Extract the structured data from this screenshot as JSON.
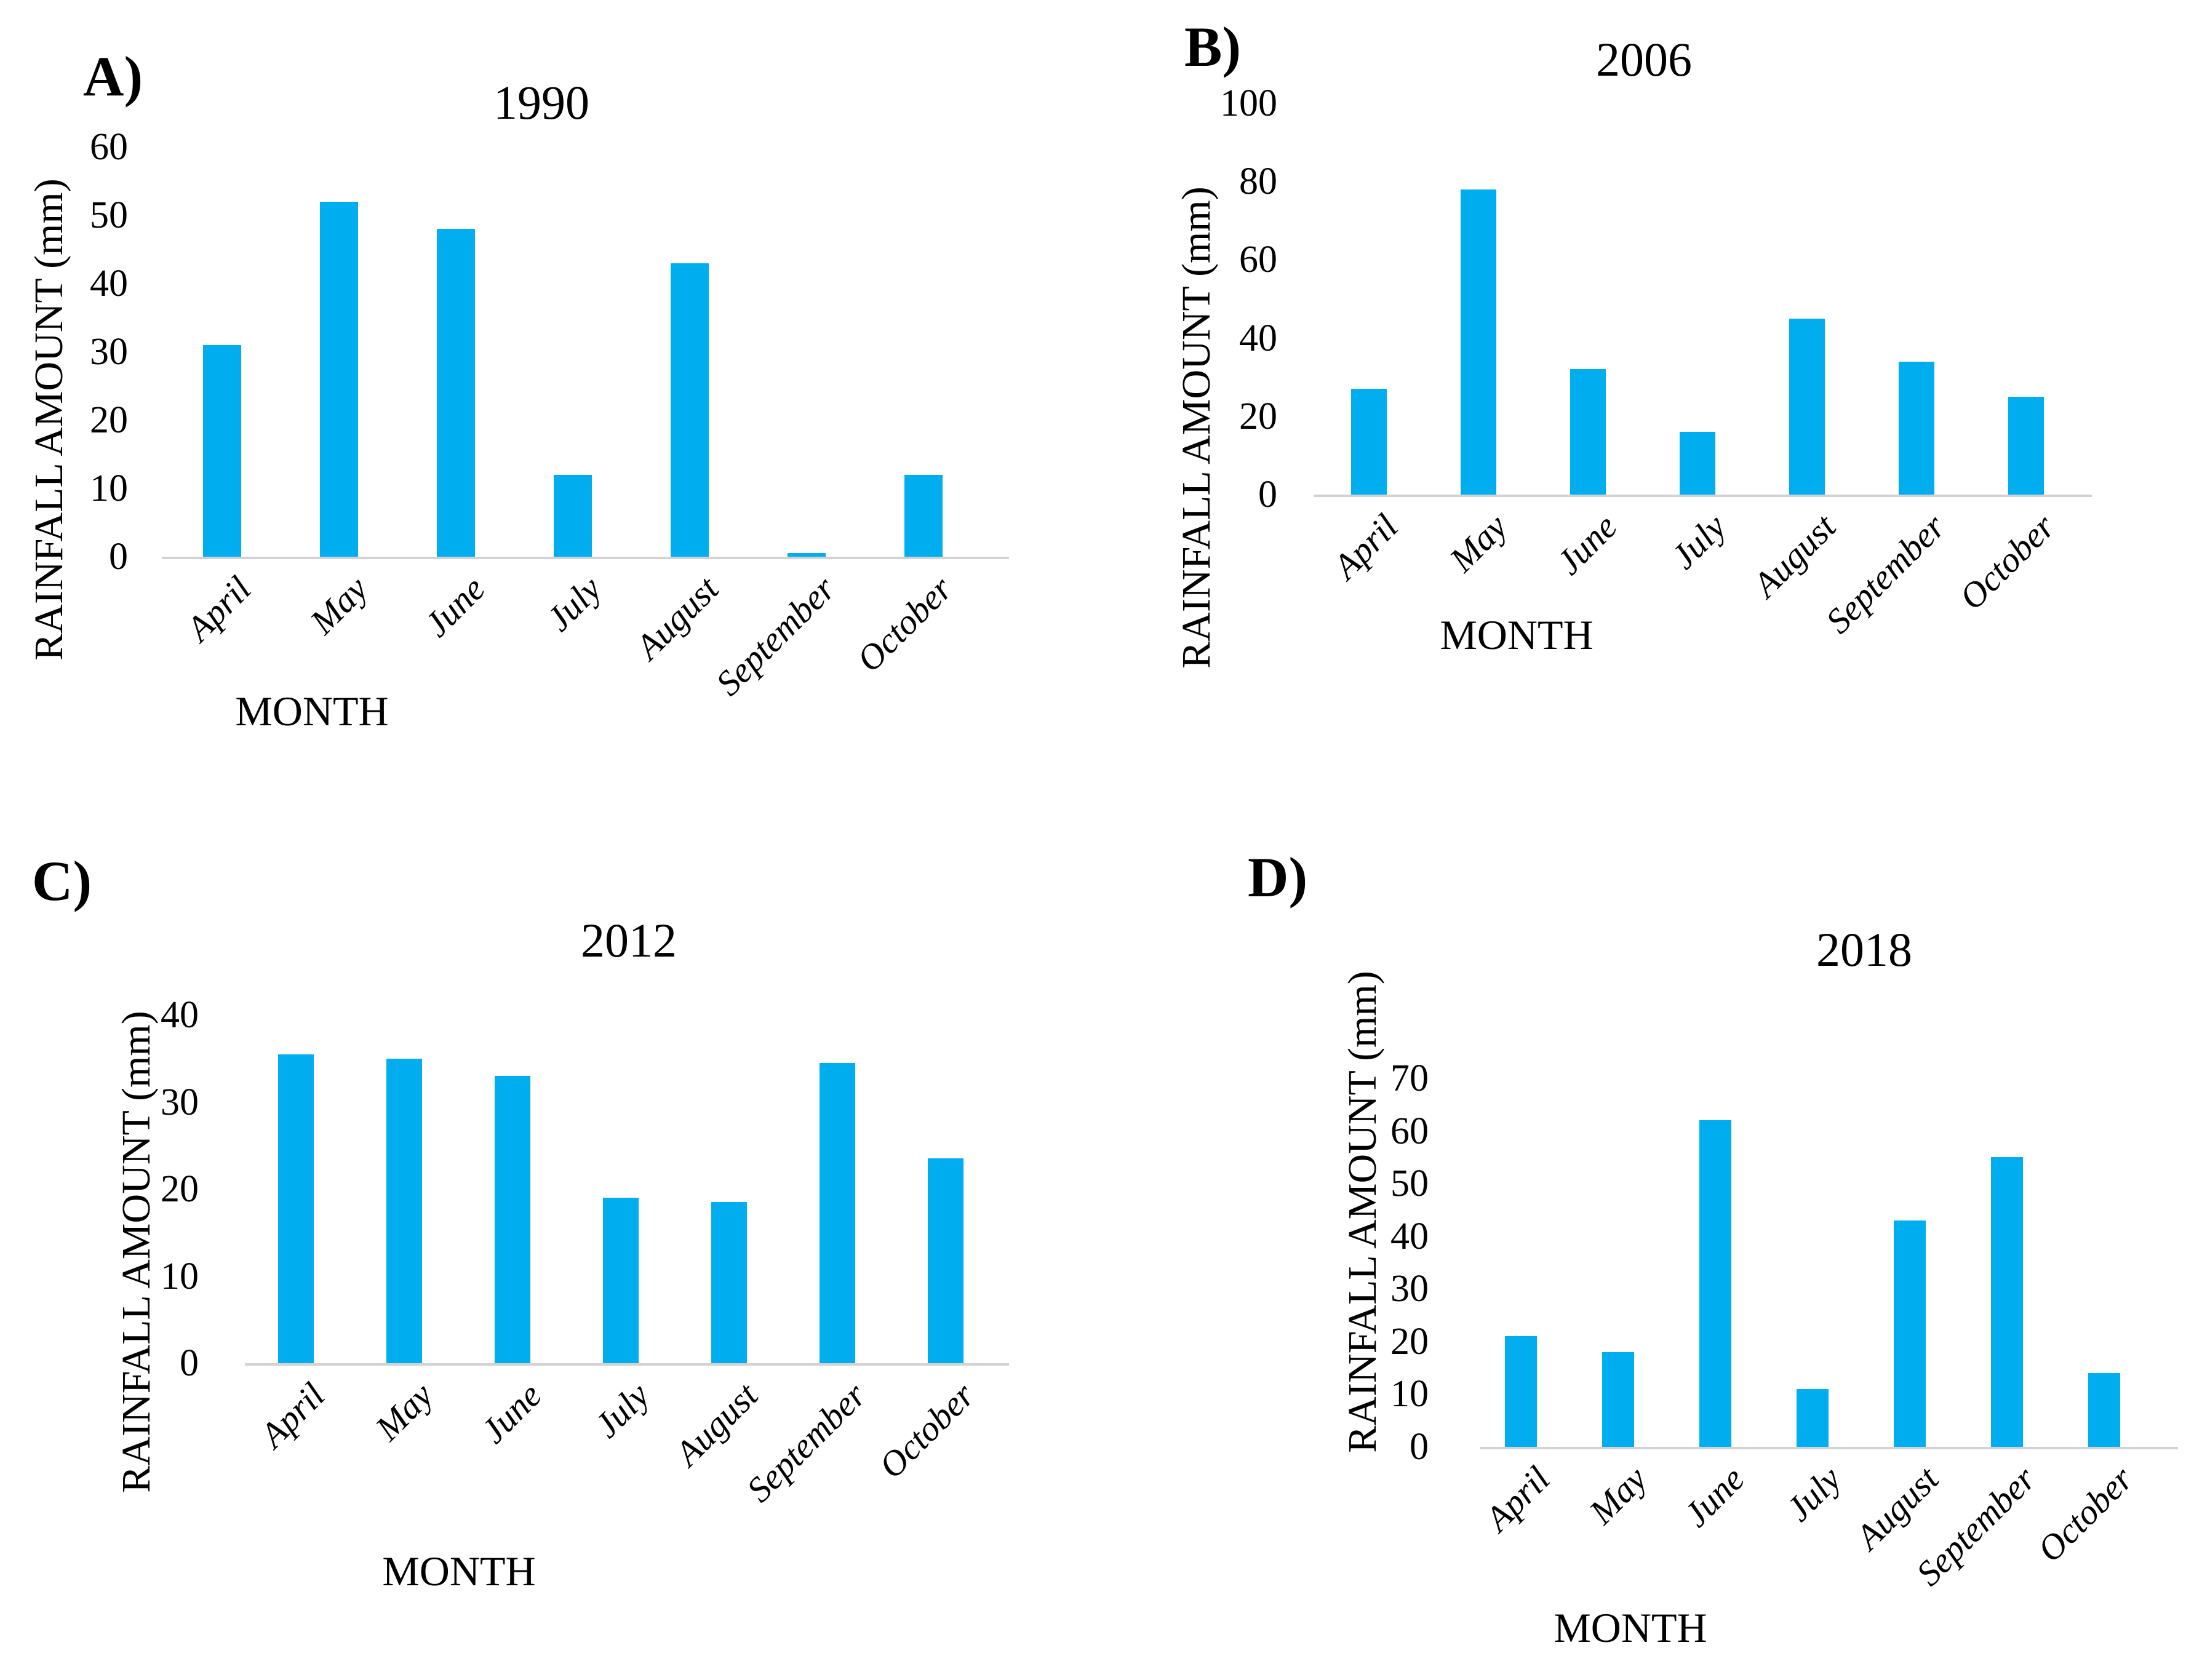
{
  "figure": {
    "background": "#ffffff",
    "bar_color": "#00AEEF",
    "axis_line_color": "#D2D2D2",
    "text_color": "#000000"
  },
  "chart_data": [
    {
      "type": "bar",
      "panel_label": "A)",
      "title": "1990",
      "xlabel": "MONTH",
      "ylabel": "RAINFALL AMOUNT (mm)",
      "categories": [
        "April",
        "May",
        "June",
        "July",
        "August",
        "September",
        "October"
      ],
      "values": [
        31,
        52,
        48,
        12,
        43,
        0.5,
        12
      ],
      "ylim": [
        0,
        60
      ],
      "yticks": [
        0,
        10,
        20,
        30,
        40,
        50,
        60
      ],
      "grid": "off",
      "legend": "none"
    },
    {
      "type": "bar",
      "panel_label": "B)",
      "title": "2006",
      "xlabel": "MONTH",
      "ylabel": "RAINFALL AMOUNT (mm)",
      "categories": [
        "April",
        "May",
        "June",
        "July",
        "August",
        "September",
        "October"
      ],
      "values": [
        27,
        78,
        32,
        16,
        45,
        34,
        25
      ],
      "ylim": [
        0,
        100
      ],
      "yticks": [
        0,
        20,
        40,
        60,
        80,
        100
      ],
      "grid": "off",
      "legend": "none"
    },
    {
      "type": "bar",
      "panel_label": "C)",
      "title": "2012",
      "xlabel": "MONTH",
      "ylabel": "RAINFALL AMOUNT (mm)",
      "categories": [
        "April",
        "May",
        "June",
        "July",
        "August",
        "September",
        "October"
      ],
      "values": [
        35.5,
        35,
        33,
        19,
        18.5,
        34.5,
        23.5
      ],
      "ylim": [
        0,
        40
      ],
      "yticks": [
        0,
        10,
        20,
        30,
        40
      ],
      "grid": "off",
      "legend": "none"
    },
    {
      "type": "bar",
      "panel_label": "D)",
      "title": "2018",
      "xlabel": "MONTH",
      "ylabel": "RAINFALL AMOUNT (mm)",
      "categories": [
        "April",
        "May",
        "June",
        "July",
        "August",
        "September",
        "October"
      ],
      "values": [
        21,
        18,
        62,
        11,
        43,
        55,
        14
      ],
      "ylim": [
        0,
        70
      ],
      "yticks": [
        0,
        10,
        20,
        30,
        40,
        50,
        60,
        70
      ],
      "grid": "off",
      "legend": "none"
    }
  ]
}
